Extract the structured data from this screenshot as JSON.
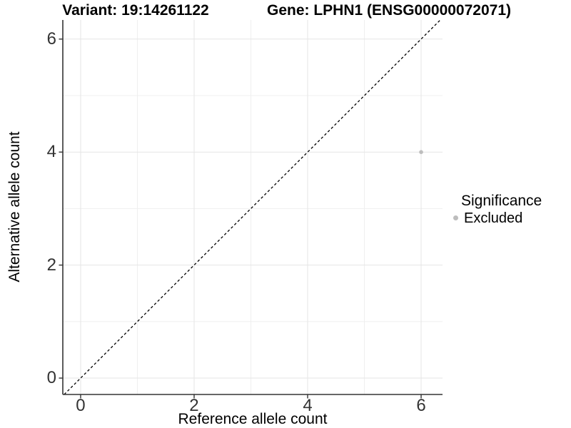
{
  "titles": {
    "variant": "Variant: 19:14261122",
    "gene": "Gene: LPHN1 (ENSG00000072071)"
  },
  "axes": {
    "x_label": "Reference allele count",
    "y_label": "Alternative allele count"
  },
  "legend": {
    "title": "Significance",
    "items": [
      {
        "label": "Excluded",
        "color": "#bdbdbd"
      }
    ]
  },
  "chart_data": {
    "type": "scatter",
    "title": "Variant: 19:14261122 — Gene: LPHN1 (ENSG00000072071)",
    "xlabel": "Reference allele count",
    "ylabel": "Alternative allele count",
    "xlim": [
      -0.314,
      6.377
    ],
    "ylim": [
      -0.29,
      6.338
    ],
    "xticks": [
      0,
      2,
      4,
      6
    ],
    "yticks": [
      0,
      2,
      4,
      6
    ],
    "grid": true,
    "legend_position": "right",
    "series": [
      {
        "name": "Excluded",
        "color": "#bdbdbd",
        "points": [
          {
            "x": 6,
            "y": 4
          }
        ]
      }
    ],
    "reference_line": {
      "type": "identity",
      "equation": "y = x",
      "style": "dashed",
      "color": "#000000"
    },
    "colors": {
      "grid_major": "#e5e5e5",
      "grid_minor": "#efefef",
      "axis_line": "#333333",
      "point": "#bdbdbd"
    }
  }
}
